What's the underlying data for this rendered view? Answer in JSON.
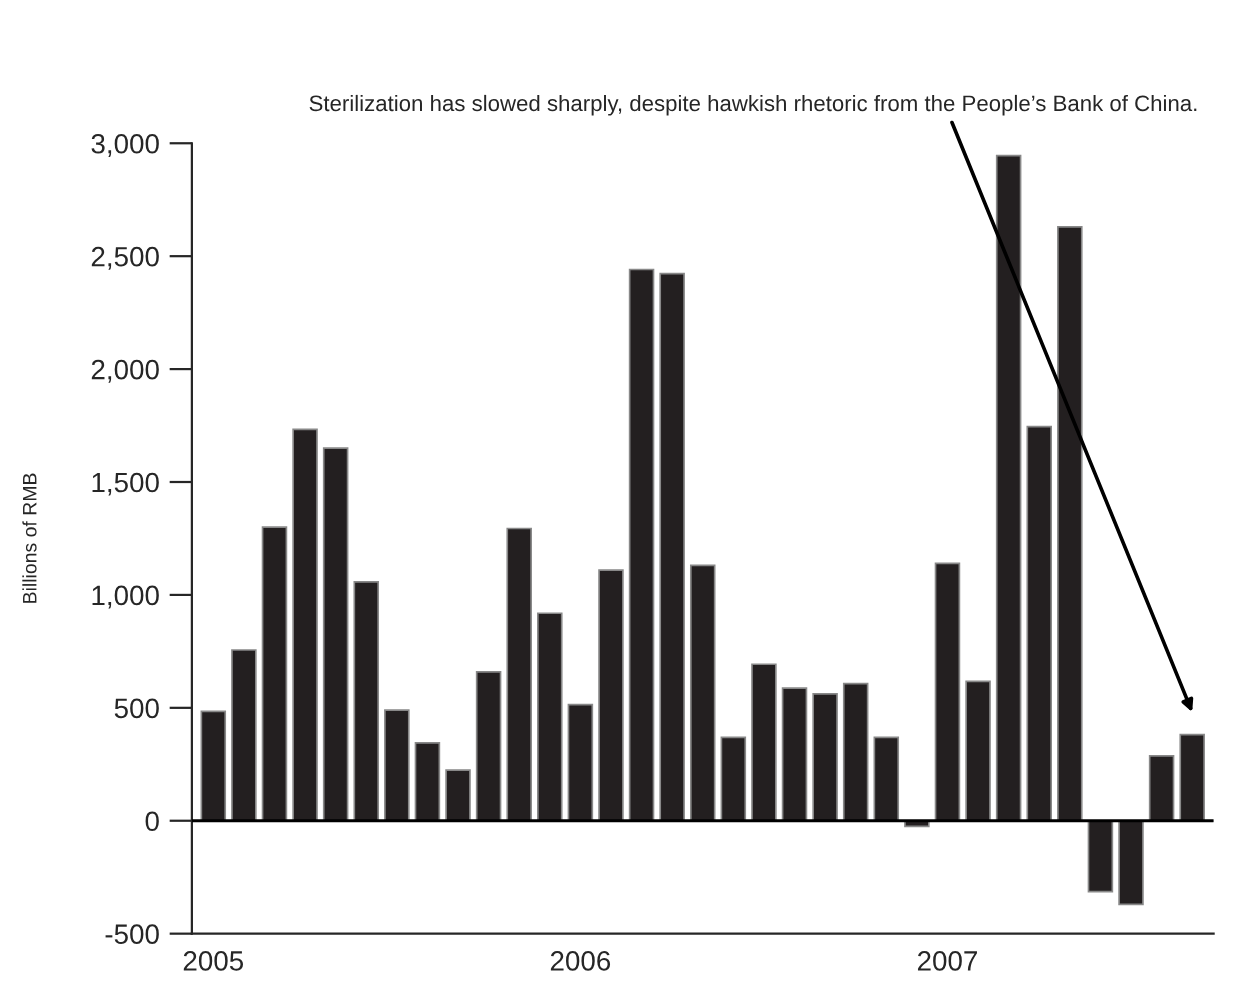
{
  "chart_data": {
    "type": "bar",
    "ylabel": "Billions of RMB",
    "categories": [
      "2005",
      null,
      null,
      null,
      null,
      null,
      null,
      null,
      null,
      null,
      null,
      null,
      "2006",
      null,
      null,
      null,
      null,
      null,
      null,
      null,
      null,
      null,
      null,
      null,
      "2007",
      null,
      null,
      null,
      null,
      null,
      null,
      null,
      null
    ],
    "values": [
      484,
      756,
      1300,
      1733,
      1650,
      1058,
      490,
      345,
      224,
      659,
      1294,
      919,
      514,
      1110,
      2441,
      2423,
      1131,
      369,
      693,
      587,
      562,
      607,
      369,
      -25,
      1140,
      617,
      2945,
      1745,
      2630,
      -314,
      -370,
      287,
      381
    ],
    "color": "#231f20",
    "ylim": [
      -500,
      3000
    ],
    "yticks": [
      {
        "value": -500,
        "label": "-500"
      },
      0,
      500,
      {
        "value": 1000,
        "label": "1,000"
      },
      {
        "value": 1500,
        "label": "1,500"
      },
      {
        "value": 2000,
        "label": "2,000"
      },
      {
        "value": 2500,
        "label": "2,500"
      },
      {
        "value": 3000,
        "label": "3,000"
      }
    ],
    "ref_lines": [
      {
        "axis": "y",
        "value": 0,
        "color": "#000000"
      }
    ],
    "annotations": [
      "Sterilization has slowed sharply, despite hawkish rhetoric from the People’s Bank of China."
    ],
    "grid": false,
    "legend": false
  }
}
